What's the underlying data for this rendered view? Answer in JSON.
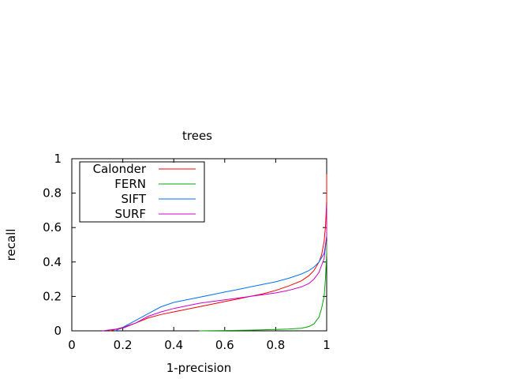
{
  "chart_data": {
    "type": "line",
    "title": "trees",
    "xlabel": "1-precision",
    "ylabel": "recall",
    "xlim": [
      0,
      1
    ],
    "ylim": [
      0,
      1
    ],
    "xticks": [
      "0",
      "0.2",
      "0.4",
      "0.6",
      "0.8",
      "1"
    ],
    "yticks": [
      "0",
      "0.2",
      "0.4",
      "0.6",
      "0.8",
      "1"
    ],
    "grid": false,
    "legend_position": "top-left",
    "series": [
      {
        "name": "Calonder",
        "color": "#ff0000",
        "x": [
          0.15,
          0.2,
          0.25,
          0.3,
          0.35,
          0.4,
          0.45,
          0.5,
          0.55,
          0.6,
          0.65,
          0.7,
          0.75,
          0.8,
          0.85,
          0.9,
          0.93,
          0.95,
          0.97,
          0.98,
          0.99,
          0.995,
          1.0,
          1.0
        ],
        "y": [
          0.0,
          0.02,
          0.045,
          0.075,
          0.095,
          0.11,
          0.125,
          0.14,
          0.155,
          0.17,
          0.185,
          0.2,
          0.215,
          0.235,
          0.26,
          0.29,
          0.32,
          0.35,
          0.4,
          0.44,
          0.52,
          0.6,
          0.75,
          0.91
        ]
      },
      {
        "name": "FERN",
        "color": "#00aa00",
        "x": [
          0.5,
          0.6,
          0.7,
          0.8,
          0.85,
          0.9,
          0.93,
          0.95,
          0.97,
          0.98,
          0.99,
          0.995,
          1.0,
          1.0
        ],
        "y": [
          0.0,
          0.002,
          0.004,
          0.008,
          0.01,
          0.015,
          0.025,
          0.04,
          0.08,
          0.13,
          0.2,
          0.3,
          0.45,
          0.52
        ]
      },
      {
        "name": "SIFT",
        "color": "#0070ff",
        "x": [
          0.17,
          0.2,
          0.25,
          0.3,
          0.35,
          0.4,
          0.45,
          0.5,
          0.55,
          0.6,
          0.65,
          0.7,
          0.75,
          0.8,
          0.85,
          0.9,
          0.93,
          0.95,
          0.97,
          0.99,
          1.0,
          1.0
        ],
        "y": [
          0.0,
          0.02,
          0.06,
          0.1,
          0.14,
          0.165,
          0.18,
          0.195,
          0.21,
          0.225,
          0.24,
          0.255,
          0.27,
          0.285,
          0.305,
          0.33,
          0.35,
          0.37,
          0.4,
          0.45,
          0.55,
          0.6
        ]
      },
      {
        "name": "SURF",
        "color": "#cc00cc",
        "x": [
          0.12,
          0.2,
          0.25,
          0.3,
          0.35,
          0.4,
          0.45,
          0.5,
          0.55,
          0.6,
          0.65,
          0.7,
          0.75,
          0.8,
          0.85,
          0.9,
          0.93,
          0.95,
          0.97,
          0.99,
          1.0,
          1.0
        ],
        "y": [
          0.0,
          0.015,
          0.045,
          0.085,
          0.11,
          0.13,
          0.145,
          0.16,
          0.17,
          0.18,
          0.19,
          0.2,
          0.21,
          0.22,
          0.235,
          0.255,
          0.275,
          0.3,
          0.34,
          0.42,
          0.55,
          0.73
        ]
      }
    ]
  }
}
